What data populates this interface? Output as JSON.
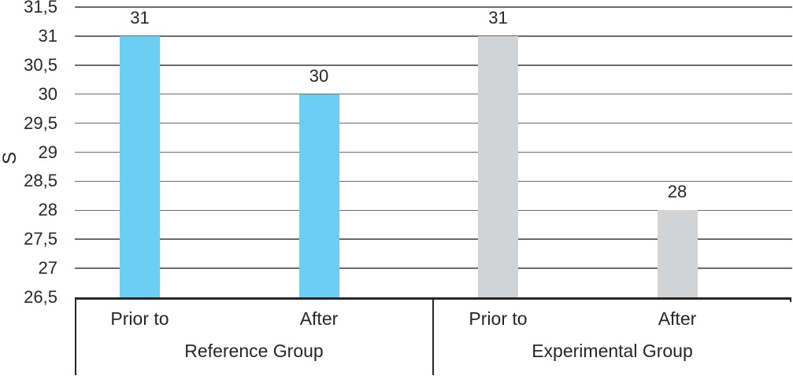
{
  "chart_data": {
    "type": "bar",
    "title": "",
    "ylabel": "S",
    "xlabel": "",
    "ylim": [
      26.5,
      31.5
    ],
    "ytick_step": 0.5,
    "grid": true,
    "legend": "none",
    "decimal_separator": ",",
    "yticks": [
      {
        "label": "31,5",
        "value": 31.5
      },
      {
        "label": "31",
        "value": 31
      },
      {
        "label": "30,5",
        "value": 30.5
      },
      {
        "label": "30",
        "value": 30
      },
      {
        "label": "29,5",
        "value": 29.5
      },
      {
        "label": "29",
        "value": 29
      },
      {
        "label": "28,5",
        "value": 28.5
      },
      {
        "label": "28",
        "value": 28
      },
      {
        "label": "27,5",
        "value": 27.5
      },
      {
        "label": "27",
        "value": 27
      },
      {
        "label": "26,5",
        "value": 26.5
      }
    ],
    "groups": [
      {
        "label": "Reference Group",
        "bar_color": "#6CCEF3",
        "bars": [
          {
            "category": "Prior to",
            "value": 31,
            "data_label": "31"
          },
          {
            "category": "After",
            "value": 30,
            "data_label": "30"
          }
        ]
      },
      {
        "label": "Experimental Group",
        "bar_color": "#D1D3D4",
        "bars": [
          {
            "category": "Prior to",
            "value": 31,
            "data_label": "31"
          },
          {
            "category": "After",
            "value": 28,
            "data_label": "28"
          }
        ]
      }
    ],
    "colors": {
      "gridline": "#6B6B6B",
      "axis_line": "#262626",
      "text": "#262626",
      "background": "#FFFFFF"
    }
  }
}
